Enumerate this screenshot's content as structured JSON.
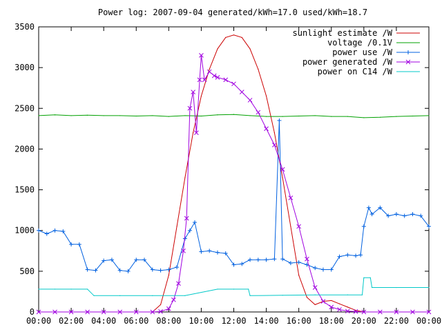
{
  "chart_data": {
    "type": "line",
    "title": "Power log: 2007-09-04 generated/kWh=17.0 used/kWh=18.7",
    "xlabel": "",
    "ylabel": "",
    "xlim": [
      0,
      24
    ],
    "ylim": [
      0,
      3500
    ],
    "grid": false,
    "legend_position": "top-right",
    "x_tick_labels": [
      "00:00",
      "02:00",
      "04:00",
      "06:00",
      "08:00",
      "10:00",
      "12:00",
      "14:00",
      "16:00",
      "18:00",
      "20:00",
      "22:00",
      "00:00"
    ],
    "x_ticks": [
      0,
      2,
      4,
      6,
      8,
      10,
      12,
      14,
      16,
      18,
      20,
      22,
      24
    ],
    "y_ticks": [
      0,
      500,
      1000,
      1500,
      2000,
      2500,
      3000,
      3500
    ],
    "series": [
      {
        "name": "sunlight estimate /W",
        "color": "#cc0000",
        "style": "line",
        "x": [
          7.0,
          7.5,
          8.0,
          8.5,
          9.0,
          9.5,
          10.0,
          10.5,
          11.0,
          11.5,
          12.0,
          12.5,
          13.0,
          13.5,
          14.0,
          14.5,
          15.0,
          15.5,
          16.0,
          16.5,
          17.0,
          17.5,
          18.0,
          18.5,
          19.0,
          19.5,
          20.0
        ],
        "values": [
          0,
          90,
          450,
          1050,
          1650,
          2200,
          2650,
          2980,
          3230,
          3370,
          3400,
          3370,
          3230,
          2980,
          2650,
          2200,
          1650,
          1050,
          450,
          180,
          90,
          130,
          140,
          100,
          60,
          20,
          0
        ]
      },
      {
        "name": "voltage /0.1V",
        "color": "#00a000",
        "style": "line",
        "x": [
          0,
          1,
          2,
          3,
          4,
          5,
          6,
          7,
          8,
          9,
          10,
          11,
          12,
          13,
          14,
          15,
          16,
          17,
          18,
          19,
          20,
          21,
          22,
          23,
          24
        ],
        "values": [
          2410,
          2420,
          2410,
          2415,
          2410,
          2410,
          2405,
          2410,
          2400,
          2410,
          2405,
          2420,
          2425,
          2410,
          2400,
          2400,
          2405,
          2410,
          2400,
          2400,
          2385,
          2390,
          2400,
          2405,
          2410
        ]
      },
      {
        "name": "power use /W",
        "color": "#0060e0",
        "style": "line+plus",
        "x": [
          0,
          0.5,
          1.0,
          1.5,
          2.0,
          2.5,
          3.0,
          3.5,
          4.0,
          4.5,
          5.0,
          5.5,
          6.0,
          6.5,
          7.0,
          7.5,
          8.0,
          8.5,
          9.0,
          9.3,
          9.6,
          10.0,
          10.5,
          11.0,
          11.5,
          12.0,
          12.5,
          13.0,
          13.5,
          14.0,
          14.5,
          14.8,
          15.0,
          15.5,
          16.0,
          16.5,
          17.0,
          17.5,
          18.0,
          18.5,
          19.0,
          19.5,
          19.8,
          20.0,
          20.3,
          20.5,
          21.0,
          21.5,
          22.0,
          22.5,
          23.0,
          23.5,
          24.0
        ],
        "values": [
          1000,
          960,
          1000,
          990,
          830,
          830,
          520,
          510,
          630,
          640,
          510,
          500,
          640,
          640,
          520,
          510,
          520,
          550,
          900,
          1000,
          1100,
          740,
          750,
          730,
          720,
          580,
          590,
          640,
          640,
          640,
          650,
          2350,
          650,
          600,
          610,
          580,
          540,
          520,
          520,
          680,
          700,
          690,
          700,
          1050,
          1280,
          1200,
          1280,
          1180,
          1200,
          1180,
          1200,
          1180,
          1050
        ]
      },
      {
        "name": "power generated /W",
        "color": "#a000e0",
        "style": "line+x",
        "x": [
          0,
          1,
          2,
          3,
          4,
          5,
          6,
          7,
          7.5,
          8.0,
          8.3,
          8.6,
          8.9,
          9.1,
          9.3,
          9.5,
          9.7,
          9.9,
          10.0,
          10.2,
          10.5,
          10.8,
          11.0,
          11.5,
          12.0,
          12.5,
          13.0,
          13.5,
          14.0,
          14.5,
          15.0,
          15.5,
          16.0,
          16.5,
          17.0,
          17.5,
          18.0,
          18.5,
          19.0,
          19.5,
          20.0,
          21,
          22,
          23,
          24
        ],
        "values": [
          0,
          0,
          0,
          0,
          0,
          0,
          0,
          0,
          5,
          40,
          150,
          350,
          750,
          1150,
          2500,
          2700,
          2200,
          2850,
          3150,
          2850,
          2950,
          2900,
          2880,
          2850,
          2800,
          2700,
          2600,
          2450,
          2250,
          2050,
          1750,
          1400,
          1050,
          650,
          300,
          130,
          60,
          30,
          10,
          5,
          0,
          0,
          0,
          0,
          0
        ]
      },
      {
        "name": "power on C14 /W",
        "color": "#00c8c8",
        "style": "line",
        "x": [
          0,
          1,
          2,
          3,
          3.4,
          5,
          7,
          9,
          11,
          12,
          12.9,
          13.0,
          15,
          17,
          19,
          19.9,
          20.0,
          20.4,
          20.5,
          22,
          24
        ],
        "values": [
          280,
          280,
          280,
          280,
          200,
          200,
          200,
          200,
          280,
          280,
          280,
          200,
          205,
          210,
          210,
          210,
          420,
          420,
          300,
          300,
          300
        ]
      }
    ]
  }
}
